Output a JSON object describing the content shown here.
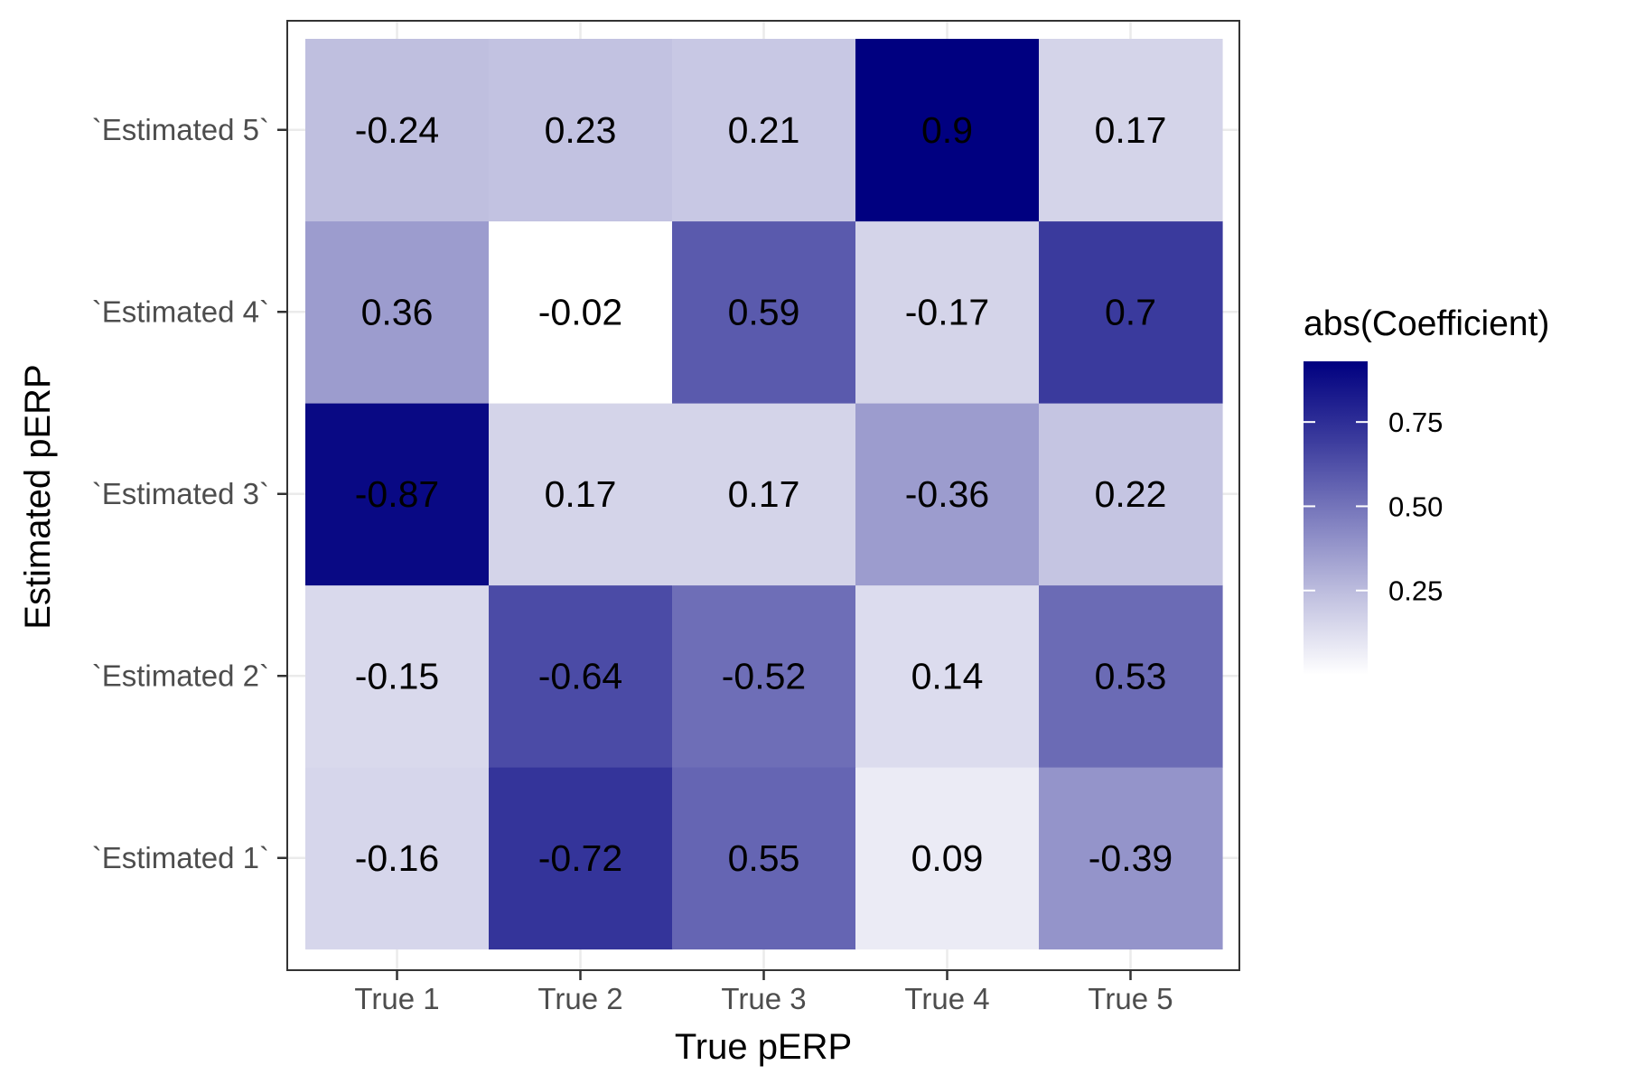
{
  "chart_data": {
    "type": "heatmap",
    "title": "",
    "xlabel": "True pERP",
    "ylabel": "Estimated pERP",
    "x_categories": [
      "True 1",
      "True 2",
      "True 3",
      "True 4",
      "True 5"
    ],
    "y_categories": [
      "`Estimated 1`",
      "`Estimated 2`",
      "`Estimated 3`",
      "`Estimated 4`",
      "`Estimated 5`"
    ],
    "values": [
      [
        -0.16,
        -0.72,
        0.55,
        0.09,
        -0.39
      ],
      [
        -0.15,
        -0.64,
        -0.52,
        0.14,
        0.53
      ],
      [
        -0.87,
        0.17,
        0.17,
        -0.36,
        0.22
      ],
      [
        0.36,
        -0.02,
        0.59,
        -0.17,
        0.7
      ],
      [
        -0.24,
        0.23,
        0.21,
        0.9,
        0.17
      ]
    ],
    "fill_value": "abs",
    "color_scale": {
      "low": "#ffffff",
      "high": "#000080",
      "domain": [
        0.02,
        0.9
      ]
    },
    "legend": {
      "title": "abs(Coefficient)",
      "ticks": [
        0.25,
        0.5,
        0.75
      ],
      "tick_labels": [
        "0.25",
        "0.50",
        "0.75"
      ],
      "position": "right"
    },
    "grid": true
  }
}
